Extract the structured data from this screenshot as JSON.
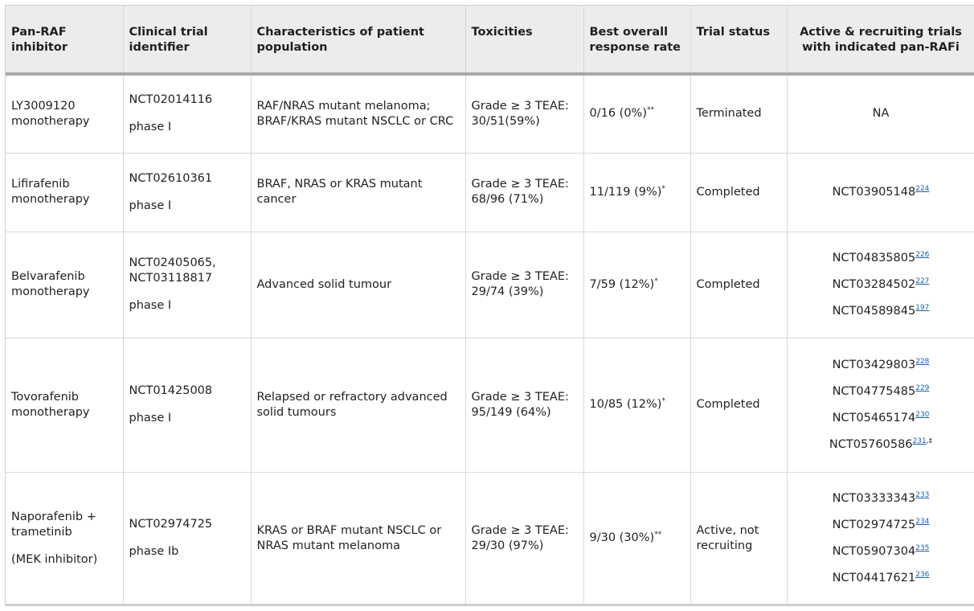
{
  "columns": [
    "Pan-RAF inhibitor",
    "Clinical trial identifier",
    "Characteristics of patient population",
    "Toxicities",
    "Best overall response rate",
    "Trial status",
    "Active & recruiting trials with indicated pan-RAFi"
  ],
  "rows": [
    {
      "inhibitor": [
        "LY3009120",
        "monotherapy"
      ],
      "trial_id": "NCT02014116",
      "phase": "phase I",
      "population": "RAF/NRAS mutant melanoma; BRAF/KRAS mutant NSCLC or CRC",
      "toxicity": [
        "Grade ≥ 3 TEAE:",
        "30/51(59%)"
      ],
      "response": "0/16 (0%)",
      "response_mark": "**",
      "status": "Terminated",
      "active_trials": [
        {
          "id": "NA",
          "ref": ""
        }
      ]
    },
    {
      "inhibitor": [
        "Lifirafenib",
        "monotherapy"
      ],
      "trial_id": "NCT02610361",
      "phase": "phase I",
      "population": "BRAF, NRAS or KRAS mutant cancer",
      "toxicity": [
        "Grade ≥ 3 TEAE:",
        "68/96 (71%)"
      ],
      "response": "11/119 (9%)",
      "response_mark": "*",
      "status": "Completed",
      "active_trials": [
        {
          "id": "NCT03905148",
          "ref": "224"
        }
      ]
    },
    {
      "inhibitor": [
        "Belvarafenib",
        "monotherapy"
      ],
      "trial_id": "NCT02405065, NCT03118817",
      "phase": "phase I",
      "population": "Advanced solid tumour",
      "toxicity": [
        "Grade ≥ 3 TEAE:",
        "29/74 (39%)"
      ],
      "response": "7/59 (12%)",
      "response_mark": "*",
      "status": "Completed",
      "active_trials": [
        {
          "id": "NCT04835805",
          "ref": "226"
        },
        {
          "id": "NCT03284502",
          "ref": "227"
        },
        {
          "id": "NCT04589845",
          "ref": "197"
        }
      ]
    },
    {
      "inhibitor": [
        "Tovorafenib",
        "monotherapy"
      ],
      "trial_id": "NCT01425008",
      "phase": "phase I",
      "population": "Relapsed or refractory advanced solid tumours",
      "toxicity": [
        "Grade ≥ 3 TEAE:",
        "95/149 (64%)"
      ],
      "response": "10/85 (12%)",
      "response_mark": "*",
      "status": "Completed",
      "active_trials": [
        {
          "id": "NCT03429803",
          "ref": "228"
        },
        {
          "id": "NCT04775485",
          "ref": "229"
        },
        {
          "id": "NCT05465174",
          "ref": "230"
        },
        {
          "id": "NCT05760586",
          "ref": "231",
          "extra": ",‡"
        }
      ]
    },
    {
      "inhibitor": [
        "Naporafenib +",
        "trametinib"
      ],
      "inhibitor_note": "(MEK inhibitor)",
      "trial_id": "NCT02974725",
      "phase": "phase Ib",
      "population": "KRAS or BRAF mutant NSCLC or NRAS mutant melanoma",
      "toxicity": [
        "Grade ≥ 3 TEAE:",
        "29/30 (97%)"
      ],
      "response": "9/30 (30%)",
      "response_mark": "**",
      "status": "Active, not recruiting",
      "active_trials": [
        {
          "id": "NCT03333343",
          "ref": "233"
        },
        {
          "id": "NCT02974725",
          "ref": "234"
        },
        {
          "id": "NCT05907304",
          "ref": "235"
        },
        {
          "id": "NCT04417621",
          "ref": "236"
        }
      ]
    }
  ]
}
